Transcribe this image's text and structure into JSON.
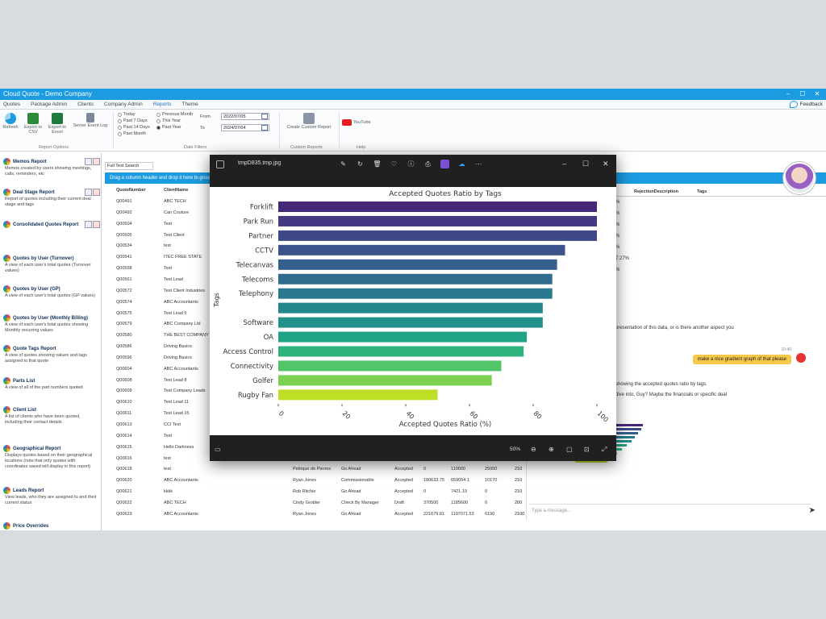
{
  "app": {
    "title": "Cloud Quote - Demo Company",
    "menu": [
      "Quotes",
      "Package Admin",
      "Clients",
      "Company Admin",
      "Reports",
      "Theme"
    ],
    "feedback_label": "Feedback"
  },
  "ribbon": {
    "refresh": "Refresh",
    "export_csv": "Export to CSV",
    "export_excel": "Export to Excel",
    "server_event_log": "Server Event Log",
    "report_options": "Report Options",
    "periods_col1": [
      "Today",
      "Past 7 Days",
      "Past 14 Days",
      "Past Month"
    ],
    "periods_col2": [
      "Previous Month",
      "This Year",
      "Past Year"
    ],
    "selected_period": "Past Year",
    "from_label": "From",
    "to_label": "To",
    "from_value": "2022/07/05",
    "to_value": "2024/07/04",
    "date_filters": "Date Filters",
    "create_custom_report": "Create Custom Report",
    "custom_reports": "Custom Reports",
    "youtube": "YouTube",
    "help": "Help"
  },
  "sidebar": {
    "reports": [
      {
        "title": "Memos Report",
        "desc": "Memos created by users showing meetings, calls, reminders, etc",
        "actions": true
      },
      {
        "title": "Deal Stage Report",
        "desc": "Report of quotes including their current deal stage and tags",
        "actions": true
      },
      {
        "title": "Consolidated Quotes Report",
        "desc": "",
        "actions": true
      },
      {
        "title": "Quotes by User (Turnover)",
        "desc": "A view of each user's total quotes (Turnover values)",
        "actions": false
      },
      {
        "title": "Quotes by User (GP)",
        "desc": "A view of each user's total quotes (GP values)",
        "actions": false
      },
      {
        "title": "Quotes by User (Monthly Billing)",
        "desc": "A view of each user's total quotes showing Monthly recurring values",
        "actions": false
      },
      {
        "title": "Quote Tags Report",
        "desc": "A view of quotes showing values and tags assigned to that quote",
        "actions": false
      },
      {
        "title": "Parts List",
        "desc": "A view of all of the part numbers quoted",
        "actions": false
      },
      {
        "title": "Client List",
        "desc": "A list of clients who have been quoted, including their contact details",
        "actions": false
      },
      {
        "title": "Geographical Report",
        "desc": "Displays quotes based on their geographical locations (note that only quotes with coordinates saved will display in this report)",
        "actions": false
      },
      {
        "title": "Leads Report",
        "desc": "View leads, who they are assigned to and their current status",
        "actions": false
      },
      {
        "title": "Price Overrides",
        "desc": "",
        "actions": false
      }
    ]
  },
  "grid": {
    "search_placeholder": "Full Text Search",
    "drag_hint": "Drag a column header and drop it here to group by that column",
    "headers": [
      "QuoteNumber",
      "ClientName"
    ],
    "right_headers": [
      "RejectionDescription",
      "Tags"
    ],
    "rows": [
      [
        "Q00491",
        "ABC TECH",
        "",
        "",
        "",
        "",
        "",
        ""
      ],
      [
        "Q00492",
        "Can Couture",
        "",
        "",
        "",
        "",
        "",
        ""
      ],
      [
        "Q00504",
        "Test",
        "",
        "",
        "",
        "",
        "",
        ""
      ],
      [
        "Q00505",
        "Test Client",
        "",
        "",
        "",
        "",
        "",
        ""
      ],
      [
        "Q00534",
        "test",
        "",
        "",
        "",
        "",
        "",
        ""
      ],
      [
        "Q00541",
        "ITEC FREE STATE",
        "",
        "",
        "",
        "",
        "",
        ""
      ],
      [
        "Q00558",
        "Test",
        "",
        "",
        "",
        "",
        "",
        ""
      ],
      [
        "Q00561",
        "Test Lead",
        "",
        "",
        "",
        "",
        "",
        ""
      ],
      [
        "Q00572",
        "Test Client Industries",
        "",
        "",
        "",
        "",
        "",
        ""
      ],
      [
        "Q00574",
        "ABC Accountants",
        "",
        "",
        "",
        "",
        "",
        ""
      ],
      [
        "Q00575",
        "Test Lead 5",
        "",
        "",
        "",
        "",
        "",
        ""
      ],
      [
        "Q00579",
        "ABC Company Ltd",
        "",
        "",
        "",
        "",
        "",
        ""
      ],
      [
        "Q00580",
        "THE BEST COMPANY",
        "",
        "",
        "",
        "",
        "",
        ""
      ],
      [
        "Q00586",
        "Driving Basics",
        "",
        "",
        "",
        "",
        "",
        ""
      ],
      [
        "Q00596",
        "Driving Basics",
        "",
        "",
        "",
        "",
        "",
        ""
      ],
      [
        "Q00604",
        "ABC Accountants",
        "",
        "",
        "",
        "",
        "",
        ""
      ],
      [
        "Q00608",
        "Test Lead 8",
        "",
        "",
        "",
        "",
        "",
        ""
      ],
      [
        "Q00609",
        "Test Company Leads",
        "",
        "",
        "",
        "",
        "",
        ""
      ],
      [
        "Q00610",
        "Test Lead 11",
        "",
        "",
        "",
        "",
        "",
        ""
      ],
      [
        "Q00611",
        "Test Lead 15",
        "",
        "",
        "",
        "",
        "",
        ""
      ],
      [
        "Q00613",
        "CCI Test",
        "",
        "",
        "",
        "",
        "",
        ""
      ],
      [
        "Q00614",
        "Test",
        "",
        "",
        "",
        "",
        "",
        ""
      ],
      [
        "Q00615",
        "Hello Darkness",
        "",
        "",
        "",
        "",
        "",
        ""
      ],
      [
        "Q00616",
        "test",
        "Richard Smith",
        "Installation & Testing",
        "Accepted",
        "",
        "",
        ""
      ],
      [
        "Q00618",
        "test",
        "Petrique de Pierres",
        "Go Ahead",
        "Accepted",
        "0",
        "110000",
        "25000"
      ],
      [
        "Q00620",
        "ABC Accountants",
        "Ryan Jones",
        "Commissionable",
        "Accepted",
        "180633.75",
        "659054.1",
        "10170"
      ],
      [
        "Q00621",
        "kkkk",
        "Rob Ritchie",
        "Go Ahead",
        "Accepted",
        "0",
        "7421.19",
        "0"
      ],
      [
        "Q00622",
        "ABC TECH",
        "Cindy Grobler",
        "Check By Manager",
        "Draft",
        "370500",
        "1185600",
        "0"
      ],
      [
        "Q00623",
        "ABC Accountants",
        "Ryan Jones",
        "Go Ahead",
        "Accepted",
        "221679.81",
        "1197071.53",
        "6190"
      ]
    ],
    "tail_values": [
      "210",
      "210",
      "210",
      "210",
      "200",
      "2100"
    ],
    "last_id": "8887150.65"
  },
  "chat": {
    "pcts": [
      "%",
      "%",
      "%",
      "%",
      "%",
      "7.27%",
      "%"
    ],
    "text1": "presentation of this data, or is there another aspect you",
    "time": "10:40",
    "user_msg": "make a nice gradient graph of that please",
    "text2": "showing the accepted quotes ratio by tags.",
    "text3": "dive into, Guy? Maybe the financials or specific deal",
    "input_placeholder": "Type a message..."
  },
  "viewer": {
    "filename": "tmpD835.tmp.jpg",
    "zoom": "50%"
  },
  "chart_data": {
    "type": "bar",
    "orientation": "horizontal",
    "title": "Accepted Quotes Ratio by Tags",
    "xlabel": "Accepted Quotes Ratio (%)",
    "ylabel": "Tags",
    "xlim": [
      0,
      100
    ],
    "xticks": [
      0,
      20,
      40,
      60,
      80,
      100
    ],
    "categories": [
      "Forklift",
      "Park Run",
      "Partner",
      "CCTV",
      "Telecanvas",
      "Telecoms",
      "Telephony",
      "",
      "Software",
      "OA",
      "Access Control",
      "Connectivity",
      "Golfer",
      "Rugby Fan"
    ],
    "values": [
      100,
      100,
      100,
      90,
      87.5,
      86,
      86,
      83,
      83,
      78,
      77,
      70,
      67,
      50
    ],
    "colors": [
      "#472878",
      "#453781",
      "#3f4889",
      "#3b528b",
      "#355f8d",
      "#2f6c8e",
      "#2a788e",
      "#24878e",
      "#21918c",
      "#20a386",
      "#2eb37c",
      "#52c569",
      "#7ad151",
      "#bddf26"
    ],
    "gradient": "viridis"
  }
}
